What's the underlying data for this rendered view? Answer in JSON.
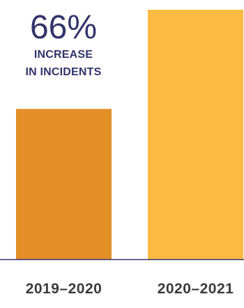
{
  "headline": {
    "value": "66%",
    "line1": "INCREASE",
    "line2": "IN INCIDENTS"
  },
  "colors": {
    "bar_2019_2020": "#e28f28",
    "bar_2020_2021": "#fcbb40",
    "baseline": "#33346b",
    "text": "#33346b",
    "tick_label": "#3b3b3b"
  },
  "chart_data": {
    "type": "bar",
    "categories": [
      "2019–2020",
      "2020–2021"
    ],
    "values": [
      100,
      166
    ],
    "title": "",
    "xlabel": "",
    "ylabel": "",
    "ylim": [
      0,
      166
    ],
    "grid": false,
    "legend": "none"
  }
}
